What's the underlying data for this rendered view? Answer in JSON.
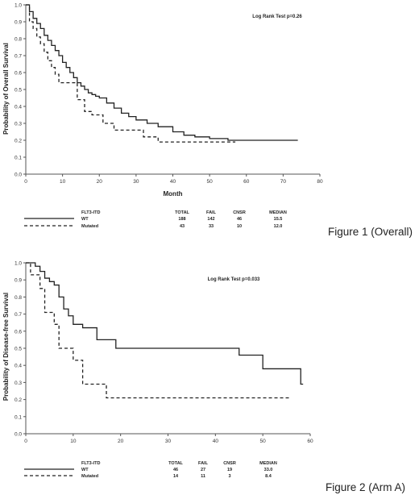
{
  "chart_data": [
    {
      "type": "line",
      "step": true,
      "ylabel": "Probability of Overall Survival",
      "xlabel": "Month",
      "annotation": "Log Rank Test p=0.26",
      "xlim": [
        0,
        80
      ],
      "ylim": [
        0,
        1.0
      ],
      "xticks": [
        "0",
        "10",
        "20",
        "30",
        "40",
        "50",
        "60",
        "70",
        "80"
      ],
      "yticks": [
        "0.0",
        "0.1",
        "0.2",
        "0.3",
        "0.4",
        "0.5",
        "0.6",
        "0.7",
        "0.8",
        "0.9",
        "1.0"
      ],
      "series": [
        {
          "name": "WT",
          "style": "solid",
          "x": [
            0,
            1,
            2,
            3,
            4,
            5,
            6,
            7,
            8,
            9,
            10,
            11,
            12,
            13,
            14,
            15,
            16,
            17,
            18,
            19,
            20,
            22,
            24,
            26,
            28,
            30,
            33,
            36,
            40,
            43,
            46,
            50,
            55,
            60,
            74
          ],
          "y": [
            1.0,
            0.96,
            0.92,
            0.89,
            0.86,
            0.82,
            0.79,
            0.76,
            0.73,
            0.7,
            0.66,
            0.63,
            0.6,
            0.57,
            0.54,
            0.52,
            0.5,
            0.48,
            0.47,
            0.46,
            0.45,
            0.42,
            0.39,
            0.36,
            0.34,
            0.32,
            0.3,
            0.28,
            0.25,
            0.23,
            0.22,
            0.21,
            0.2,
            0.2,
            0.2
          ]
        },
        {
          "name": "Mutated",
          "style": "dashed",
          "x": [
            0,
            1,
            2,
            3,
            4,
            5,
            6,
            7,
            8,
            9,
            10,
            12,
            14,
            16,
            18,
            21,
            24,
            28,
            32,
            36,
            57
          ],
          "y": [
            1.0,
            0.9,
            0.86,
            0.81,
            0.77,
            0.72,
            0.67,
            0.63,
            0.59,
            0.54,
            0.54,
            0.54,
            0.44,
            0.37,
            0.35,
            0.3,
            0.26,
            0.26,
            0.22,
            0.19,
            0.19
          ]
        }
      ],
      "legend": {
        "title": "FLT3-ITD",
        "headers": [
          "TOTAL",
          "FAIL",
          "CNSR",
          "MEDIAN"
        ],
        "rows": [
          {
            "label": "WT",
            "style": "solid",
            "total": "188",
            "fail": "142",
            "cnsr": "46",
            "median": "15.5"
          },
          {
            "label": "Mutated",
            "style": "dashed",
            "total": "43",
            "fail": "33",
            "cnsr": "10",
            "median": "12.0"
          }
        ]
      }
    },
    {
      "type": "line",
      "step": true,
      "ylabel": "Probability of Disease-free Survival",
      "xlabel": "",
      "annotation": "Log Rank Test p=0.033",
      "xlim": [
        0,
        60
      ],
      "ylim": [
        0,
        1.0
      ],
      "xticks": [
        "0",
        "10",
        "20",
        "30",
        "40",
        "50",
        "60"
      ],
      "yticks": [
        "0.0",
        "0.1",
        "0.2",
        "0.3",
        "0.4",
        "0.5",
        "0.6",
        "0.7",
        "0.8",
        "0.9",
        "1.0"
      ],
      "series": [
        {
          "name": "WT",
          "style": "solid",
          "x": [
            0,
            2,
            3,
            4,
            5,
            6,
            7,
            8,
            9,
            10,
            12,
            15,
            19,
            22,
            30,
            45,
            50,
            58,
            58.5
          ],
          "y": [
            1.0,
            0.98,
            0.95,
            0.91,
            0.89,
            0.87,
            0.8,
            0.73,
            0.69,
            0.64,
            0.62,
            0.55,
            0.5,
            0.5,
            0.5,
            0.46,
            0.38,
            0.29,
            0.29
          ]
        },
        {
          "name": "Mutated",
          "style": "dashed",
          "x": [
            0,
            1,
            3,
            4,
            6,
            7,
            8,
            10,
            12,
            17,
            56
          ],
          "y": [
            1.0,
            0.93,
            0.85,
            0.71,
            0.64,
            0.5,
            0.5,
            0.43,
            0.29,
            0.21,
            0.21
          ]
        }
      ],
      "legend": {
        "title": "FLT3-ITD",
        "headers": [
          "TOTAL",
          "FAIL",
          "CNSR",
          "MEDIAN"
        ],
        "rows": [
          {
            "label": "WT",
            "style": "solid",
            "total": "46",
            "fail": "27",
            "cnsr": "19",
            "median": "33.0"
          },
          {
            "label": "Mutated",
            "style": "dashed",
            "total": "14",
            "fail": "11",
            "cnsr": "3",
            "median": "8.4"
          }
        ]
      }
    }
  ],
  "captions": {
    "figure1": "Figure 1 (Overall)",
    "figure2": "Figure 2 (Arm A)"
  }
}
